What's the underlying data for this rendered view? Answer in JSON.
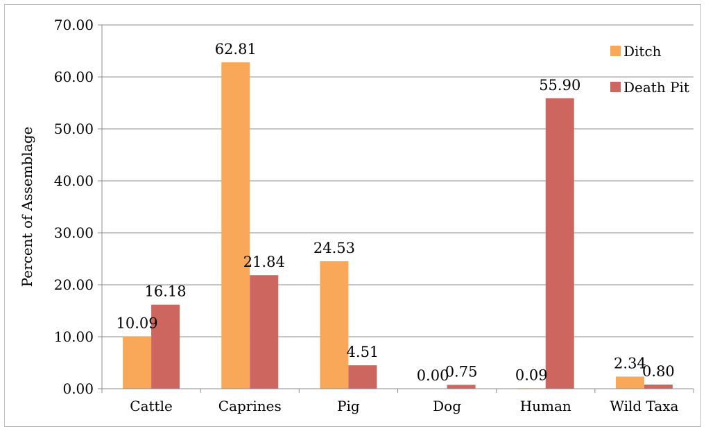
{
  "chart_data": {
    "type": "bar",
    "title": "",
    "xlabel": "",
    "ylabel": "Percent of Assemblage",
    "ylim": [
      0,
      70
    ],
    "ytick_step": 10,
    "ytick_labels": [
      "0.00",
      "10.00",
      "20.00",
      "30.00",
      "40.00",
      "50.00",
      "60.00",
      "70.00"
    ],
    "grid": true,
    "legend_position": "top-right",
    "categories": [
      "Cattle",
      "Caprines",
      "Pig",
      "Dog",
      "Human",
      "Wild Taxa"
    ],
    "series": [
      {
        "name": "Ditch",
        "color": "#F9A85A",
        "values": [
          10.09,
          62.81,
          24.53,
          0.0,
          0.09,
          2.34
        ],
        "labels": [
          "10.09",
          "62.81",
          "24.53",
          "0.00",
          "0.09",
          "2.34"
        ]
      },
      {
        "name": "Death Pit",
        "color": "#CD665E",
        "values": [
          16.18,
          21.84,
          4.51,
          0.75,
          55.9,
          0.8
        ],
        "labels": [
          "16.18",
          "21.84",
          "4.51",
          "0.75",
          "55.90",
          "0.80"
        ]
      }
    ]
  }
}
